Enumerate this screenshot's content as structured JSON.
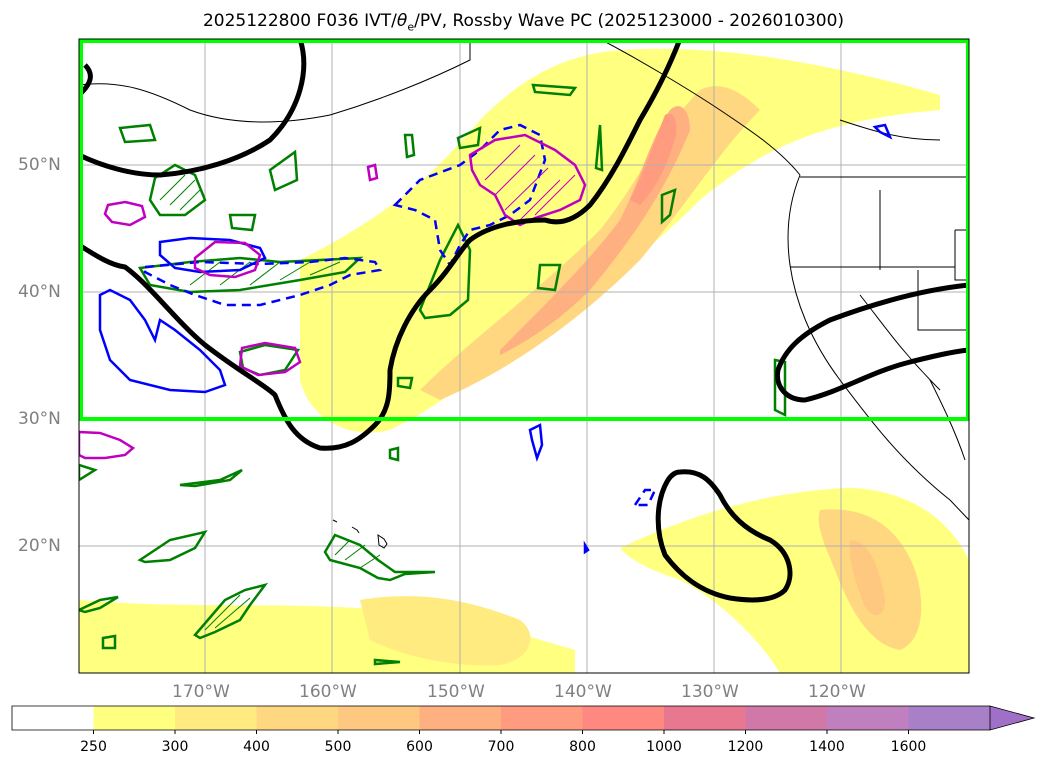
{
  "title": {
    "prefix": "2025122800 F036 IVT/",
    "theta": "θ",
    "theta_sub": "e",
    "suffix": "/PV, Rossby Wave PC (2025123000 - 2026010300)"
  },
  "map": {
    "lat_labels": [
      "50°N",
      "40°N",
      "30°N",
      "20°N"
    ],
    "lon_labels": [
      "170°W",
      "160°W",
      "150°W",
      "140°W",
      "130°W",
      "120°W"
    ],
    "colors": {
      "ivt_250": "#ffff80",
      "ivt_300": "#ffe680",
      "ivt_400": "#ffd780",
      "ivt_500": "#ffc880",
      "ivt_600": "#ffb080",
      "ivt_700": "#ff9c80",
      "pv_contour": "#000000",
      "box": "#00ff00",
      "theta_pos": "#008000",
      "theta_neg": "#0000ff",
      "magenta": "#c000c0"
    }
  },
  "colorbar": {
    "levels": [
      "250",
      "300",
      "400",
      "500",
      "600",
      "700",
      "800",
      "1000",
      "1200",
      "1400",
      "1600"
    ],
    "fills": [
      "#ffffff",
      "#ffff80",
      "#ffeb80",
      "#ffd780",
      "#ffc880",
      "#ffb080",
      "#ff9c80",
      "#ff8880",
      "#e87890",
      "#d078a8",
      "#c080c0",
      "#a880c8"
    ]
  }
}
